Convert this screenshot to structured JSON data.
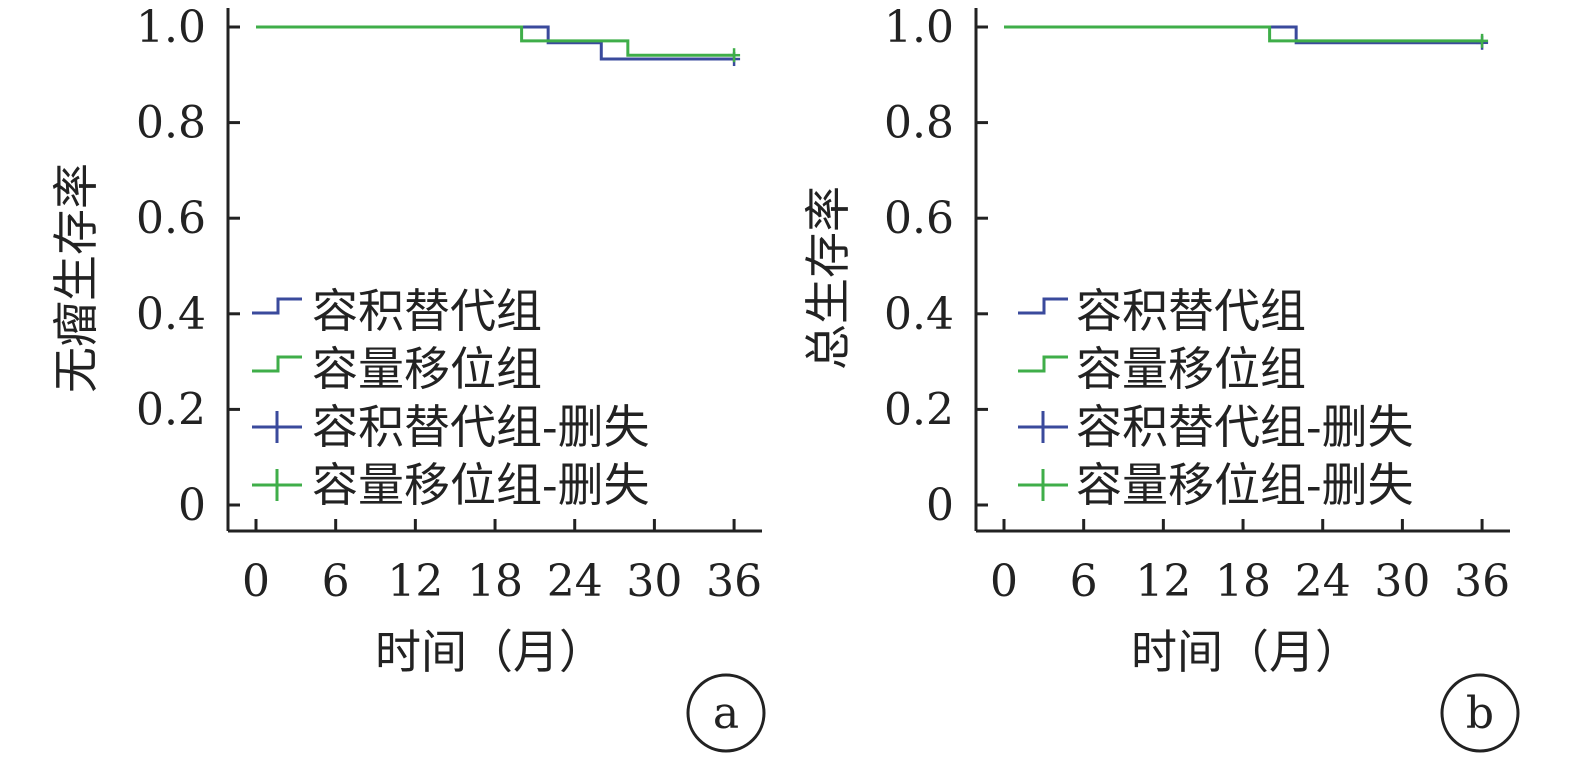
{
  "chart_data": [
    {
      "type": "line",
      "step": true,
      "panel_label": "a",
      "ylabel": "无瘤生存率",
      "xlabel": "时间（月）",
      "xticks": [
        0,
        6,
        12,
        18,
        24,
        30,
        36
      ],
      "yticks": [
        0,
        0.2,
        0.4,
        0.6,
        0.8,
        1.0
      ],
      "ytick_labels": [
        "0",
        "0.2",
        "0.4",
        "0.6",
        "0.8",
        "1.0"
      ],
      "xlim": [
        -2,
        38
      ],
      "ylim": [
        0,
        1.0
      ],
      "legend_position": "center-left",
      "legend": [
        "容积替代组",
        "容量移位组",
        "容积替代组-删失",
        "容量移位组-删失"
      ],
      "series": [
        {
          "name": "容积替代组",
          "color": "#3a4a9c",
          "x": [
            0,
            22,
            26,
            36
          ],
          "y": [
            1.0,
            0.967,
            0.933,
            0.933
          ],
          "censor_x": [
            36
          ],
          "censor_y": [
            0.933
          ]
        },
        {
          "name": "容量移位组",
          "color": "#3fae49",
          "x": [
            0,
            20,
            28,
            36
          ],
          "y": [
            1.0,
            0.971,
            0.941,
            0.941
          ],
          "censor_x": [
            36
          ],
          "censor_y": [
            0.941
          ]
        }
      ]
    },
    {
      "type": "line",
      "step": true,
      "panel_label": "b",
      "ylabel": "总生存率",
      "xlabel": "时间（月）",
      "xticks": [
        0,
        6,
        12,
        18,
        24,
        30,
        36
      ],
      "yticks": [
        0,
        0.2,
        0.4,
        0.6,
        0.8,
        1.0
      ],
      "ytick_labels": [
        "0",
        "0.2",
        "0.4",
        "0.6",
        "0.8",
        "1.0"
      ],
      "xlim": [
        -2,
        38
      ],
      "ylim": [
        0,
        1.0
      ],
      "legend_position": "center-left",
      "legend": [
        "容积替代组",
        "容量移位组",
        "容积替代组-删失",
        "容量移位组-删失"
      ],
      "series": [
        {
          "name": "容积替代组",
          "color": "#3a4a9c",
          "x": [
            0,
            22,
            36
          ],
          "y": [
            1.0,
            0.967,
            0.967
          ],
          "censor_x": [
            36
          ],
          "censor_y": [
            0.967
          ]
        },
        {
          "name": "容量移位组",
          "color": "#3fae49",
          "x": [
            0,
            20,
            36
          ],
          "y": [
            1.0,
            0.971,
            0.971
          ],
          "censor_x": [
            36
          ],
          "censor_y": [
            0.971
          ]
        }
      ]
    }
  ]
}
